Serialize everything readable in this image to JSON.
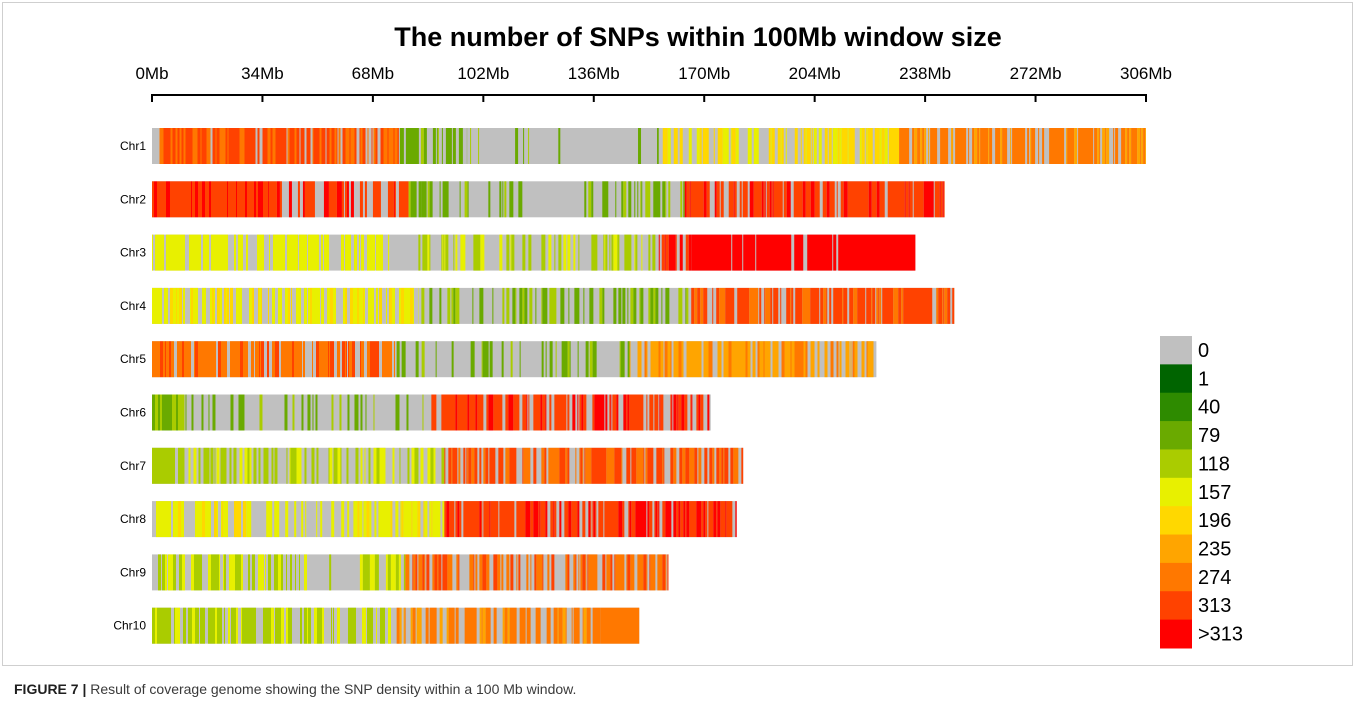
{
  "chart_data": {
    "type": "heatmap",
    "title": "The number of SNPs within 100Mb window size",
    "xlim": [
      0,
      306
    ],
    "x_ticks": [
      0,
      34,
      68,
      102,
      136,
      170,
      204,
      238,
      272,
      306
    ],
    "x_tick_labels": [
      "0Mb",
      "34Mb",
      "68Mb",
      "102Mb",
      "136Mb",
      "170Mb",
      "204Mb",
      "238Mb",
      "272Mb",
      "306Mb"
    ],
    "grid": false,
    "legend_position": "right",
    "legend": [
      {
        "label": "0",
        "color": "#C0C0C0"
      },
      {
        "label": "1",
        "color": "#006400"
      },
      {
        "label": "40",
        "color": "#2E8B00"
      },
      {
        "label": "79",
        "color": "#6AAA00"
      },
      {
        "label": "118",
        "color": "#AACC00"
      },
      {
        "label": "157",
        "color": "#E8F000"
      },
      {
        "label": "196",
        "color": "#FFD800"
      },
      {
        "label": "235",
        "color": "#FFA500"
      },
      {
        "label": "274",
        "color": "#FF7800"
      },
      {
        "label": "313",
        "color": "#FF4200"
      },
      {
        "label": ">313",
        "color": "#FF0000"
      }
    ],
    "chromosomes": [
      {
        "name": "Chr1",
        "length": 306,
        "segments": [
          {
            "start": 2,
            "end": 76,
            "bin": "313",
            "alt": "274",
            "fill": 0.88
          },
          {
            "start": 76,
            "end": 97,
            "bin": "79",
            "alt": "118",
            "fill": 0.6
          },
          {
            "start": 97,
            "end": 118,
            "bin": "79",
            "alt": "118",
            "fill": 0.18
          },
          {
            "start": 118,
            "end": 127,
            "bin": "79",
            "fill": 0.05
          },
          {
            "start": 141,
            "end": 156,
            "bin": "79",
            "alt": "118",
            "fill": 0.2
          },
          {
            "start": 156,
            "end": 230,
            "bin": "196",
            "alt": "157",
            "fill": 0.75
          },
          {
            "start": 230,
            "end": 306,
            "bin": "274",
            "alt": "235",
            "fill": 0.75
          }
        ]
      },
      {
        "name": "Chr2",
        "length": 244,
        "segments": [
          {
            "start": 0,
            "end": 36,
            "bin": "313",
            "alt": ">313",
            "fill": 0.97
          },
          {
            "start": 36,
            "end": 79,
            "bin": "313",
            "alt": ">313",
            "fill": 0.7
          },
          {
            "start": 79,
            "end": 83,
            "bin": "79",
            "alt": "118",
            "fill": 0.5
          },
          {
            "start": 83,
            "end": 98,
            "bin": "79",
            "alt": "118",
            "fill": 0.4
          },
          {
            "start": 98,
            "end": 116,
            "bin": "79",
            "alt": "118",
            "fill": 0.35
          },
          {
            "start": 130,
            "end": 164,
            "bin": "79",
            "alt": "118",
            "fill": 0.45
          },
          {
            "start": 164,
            "end": 244,
            "bin": "313",
            "alt": ">313",
            "fill": 0.8
          }
        ]
      },
      {
        "name": "Chr3",
        "length": 235,
        "segments": [
          {
            "start": 0,
            "end": 73,
            "bin": "157",
            "fill": 0.7
          },
          {
            "start": 82,
            "end": 156,
            "bin": "118",
            "alt": "157",
            "fill": 0.45
          },
          {
            "start": 156,
            "end": 166,
            "bin": ">313",
            "alt": "313",
            "fill": 0.6
          },
          {
            "start": 166,
            "end": 235,
            "bin": ">313",
            "fill": 0.92
          }
        ]
      },
      {
        "name": "Chr4",
        "length": 247,
        "segments": [
          {
            "start": 0,
            "end": 82,
            "bin": "157",
            "alt": "196",
            "fill": 0.65
          },
          {
            "start": 82,
            "end": 166,
            "bin": "79",
            "alt": "118",
            "fill": 0.45
          },
          {
            "start": 166,
            "end": 247,
            "bin": "313",
            "alt": "274",
            "fill": 0.8
          }
        ]
      },
      {
        "name": "Chr5",
        "length": 223,
        "segments": [
          {
            "start": 0,
            "end": 75,
            "bin": "274",
            "alt": "313",
            "fill": 0.8
          },
          {
            "start": 75,
            "end": 147,
            "bin": "79",
            "alt": "118",
            "fill": 0.35
          },
          {
            "start": 147,
            "end": 223,
            "bin": "235",
            "alt": "274",
            "fill": 0.75
          }
        ]
      },
      {
        "name": "Chr6",
        "length": 172,
        "segments": [
          {
            "start": 0,
            "end": 10,
            "bin": "79",
            "alt": "118",
            "fill": 0.85
          },
          {
            "start": 10,
            "end": 86,
            "bin": "79",
            "alt": "118",
            "fill": 0.25
          },
          {
            "start": 86,
            "end": 172,
            "bin": "313",
            "alt": ">313",
            "fill": 0.75
          }
        ]
      },
      {
        "name": "Chr7",
        "length": 182,
        "segments": [
          {
            "start": 0,
            "end": 10,
            "bin": "118",
            "fill": 0.95
          },
          {
            "start": 10,
            "end": 90,
            "bin": "118",
            "alt": "157",
            "fill": 0.5
          },
          {
            "start": 90,
            "end": 182,
            "bin": "313",
            "alt": "274",
            "fill": 0.75
          }
        ]
      },
      {
        "name": "Chr8",
        "length": 180,
        "segments": [
          {
            "start": 0,
            "end": 29,
            "bin": "157",
            "alt": "196",
            "fill": 0.8
          },
          {
            "start": 29,
            "end": 62,
            "bin": "157",
            "fill": 0.35
          },
          {
            "start": 62,
            "end": 90,
            "bin": "157",
            "alt": "196",
            "fill": 0.75
          },
          {
            "start": 90,
            "end": 180,
            "bin": "313",
            "alt": ">313",
            "fill": 0.85
          }
        ]
      },
      {
        "name": "Chr9",
        "length": 159,
        "segments": [
          {
            "start": 0,
            "end": 49,
            "bin": "118",
            "alt": "157",
            "fill": 0.6
          },
          {
            "start": 49,
            "end": 64,
            "bin": "118",
            "fill": 0.05
          },
          {
            "start": 64,
            "end": 78,
            "bin": "118",
            "alt": "157",
            "fill": 0.7
          },
          {
            "start": 78,
            "end": 159,
            "bin": "274",
            "alt": "313",
            "fill": 0.7
          }
        ]
      },
      {
        "name": "Chr10",
        "length": 150,
        "segments": [
          {
            "start": 0,
            "end": 75,
            "bin": "118",
            "alt": "157",
            "fill": 0.6
          },
          {
            "start": 75,
            "end": 138,
            "bin": "274",
            "alt": "235",
            "fill": 0.72
          },
          {
            "start": 138,
            "end": 150,
            "bin": "274",
            "fill": 1.0
          }
        ]
      }
    ]
  },
  "caption": {
    "label": "FIGURE 7 |",
    "text": " Result of coverage genome showing the SNP density within a 100 Mb window."
  }
}
